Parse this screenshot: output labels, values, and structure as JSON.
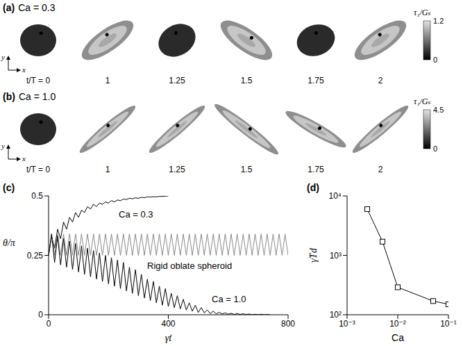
{
  "image_panels": [
    {
      "label": "(a)",
      "title": "Ca = 0.3",
      "axes": [
        "x",
        "y"
      ],
      "frame_labels": [
        "t/T = 0",
        "1",
        "1.25",
        "1.5",
        "1.75",
        "2"
      ],
      "colorbar": {
        "label": "τ₁/Gₛ",
        "range": [
          0,
          1.2
        ],
        "ticks": [
          0,
          1.2
        ]
      }
    },
    {
      "label": "(b)",
      "title": "Ca = 1.0",
      "axes": [
        "x",
        "y"
      ],
      "frame_labels": [
        "t/T = 0",
        "1",
        "1.25",
        "1.5",
        "1.75",
        "2"
      ],
      "colorbar": {
        "label": "τ₁/Gₛ",
        "range": [
          0,
          4.5
        ],
        "ticks": [
          0,
          4.5
        ]
      }
    }
  ],
  "chart_data": [
    {
      "type": "line",
      "label": "(c)",
      "x_label": "γ̇t",
      "y_label": "θ/π",
      "x": [
        0,
        10,
        20,
        30,
        40,
        50,
        60,
        70,
        80,
        90,
        100,
        110,
        120,
        130,
        140,
        150,
        160,
        170,
        180,
        190,
        200,
        210,
        220,
        230,
        240,
        250,
        260,
        270,
        280,
        290,
        300,
        310,
        320,
        330,
        340,
        350,
        360,
        370,
        380,
        390,
        400,
        410,
        420,
        430,
        440,
        450,
        460,
        470,
        480,
        490,
        500,
        510,
        520,
        530,
        540,
        550,
        560,
        570,
        580,
        590,
        600,
        610,
        620,
        630,
        640,
        650,
        660,
        670,
        680,
        690,
        700,
        710,
        720,
        730,
        740,
        750,
        760,
        770,
        780,
        790,
        800
      ],
      "series": [
        {
          "name": "Ca = 0.3",
          "color": "#000000",
          "values": [
            0.25,
            0.33,
            0.28,
            0.36,
            0.32,
            0.39,
            0.36,
            0.41,
            0.39,
            0.43,
            0.41,
            0.44,
            0.43,
            0.455,
            0.445,
            0.465,
            0.455,
            0.47,
            0.465,
            0.475,
            0.47,
            0.48,
            0.475,
            0.483,
            0.48,
            0.487,
            0.485,
            0.49,
            0.488,
            0.492,
            0.49,
            0.494,
            0.493,
            0.496,
            0.495,
            0.497,
            0.496,
            0.498,
            0.498,
            0.499,
            0.5,
            null,
            null,
            null,
            null,
            null,
            null,
            null,
            null,
            null,
            null,
            null,
            null,
            null,
            null,
            null,
            null,
            null,
            null,
            null,
            null,
            null,
            null,
            null,
            null,
            null,
            null,
            null,
            null,
            null,
            null,
            null,
            null,
            null,
            null,
            null,
            null,
            null,
            null,
            null,
            null
          ]
        },
        {
          "name": "Rigid oblate spheroid",
          "color": "#8a8a8a",
          "values": [
            0.25,
            0.34,
            0.25,
            0.34,
            0.25,
            0.34,
            0.25,
            0.34,
            0.25,
            0.34,
            0.25,
            0.34,
            0.25,
            0.34,
            0.25,
            0.34,
            0.25,
            0.34,
            0.25,
            0.34,
            0.25,
            0.34,
            0.25,
            0.34,
            0.25,
            0.34,
            0.25,
            0.34,
            0.25,
            0.34,
            0.25,
            0.34,
            0.25,
            0.34,
            0.25,
            0.34,
            0.25,
            0.34,
            0.25,
            0.34,
            0.25,
            0.34,
            0.25,
            0.34,
            0.25,
            0.34,
            0.25,
            0.34,
            0.25,
            0.34,
            0.25,
            0.34,
            0.25,
            0.34,
            0.25,
            0.34,
            0.25,
            0.34,
            0.25,
            0.34,
            0.25,
            0.34,
            0.25,
            0.34,
            0.25,
            0.34,
            0.25,
            0.34,
            0.25,
            0.34,
            0.25,
            0.34,
            0.25,
            0.34,
            0.25,
            0.34,
            0.25,
            0.34,
            0.25,
            0.34,
            0.25
          ]
        },
        {
          "name": "Ca = 1.0",
          "color": "#000000",
          "values": [
            0.25,
            0.34,
            0.22,
            0.33,
            0.21,
            0.32,
            0.2,
            0.31,
            0.19,
            0.3,
            0.18,
            0.29,
            0.17,
            0.28,
            0.16,
            0.27,
            0.15,
            0.26,
            0.14,
            0.25,
            0.13,
            0.24,
            0.12,
            0.23,
            0.11,
            0.22,
            0.1,
            0.2,
            0.09,
            0.19,
            0.08,
            0.17,
            0.07,
            0.15,
            0.06,
            0.14,
            0.05,
            0.12,
            0.04,
            0.11,
            0.035,
            0.09,
            0.03,
            0.08,
            0.025,
            0.065,
            0.02,
            0.05,
            0.015,
            0.04,
            0.01,
            0.03,
            0.008,
            0.02,
            0.005,
            0.015,
            0.004,
            0.01,
            0.003,
            0.008,
            0.002,
            0.006,
            0.001,
            0.005,
            0.001,
            0.004,
            0.001,
            0.003,
            0,
            0.002,
            0,
            0.002,
            0,
            0.001,
            0,
            null,
            null,
            null,
            null,
            null,
            null
          ]
        }
      ],
      "xlim": [
        0,
        800
      ],
      "xticks": [
        0,
        400,
        800
      ],
      "ylim": [
        0,
        0.5
      ],
      "yticks": [
        0,
        0.25,
        0.5
      ]
    },
    {
      "type": "line",
      "label": "(d)",
      "x_label": "Ca",
      "y_label": "γ̇Td",
      "log": true,
      "marker": "square",
      "color": "#000000",
      "x": [
        0.0025,
        0.005,
        0.01,
        0.05,
        0.1
      ],
      "values": [
        6000,
        1700,
        290,
        170,
        150
      ],
      "xlim": [
        0.001,
        0.1
      ],
      "xticks": [
        {
          "value": 0.001,
          "label": "10⁻³"
        },
        {
          "value": 0.01,
          "label": "10⁻²"
        },
        {
          "value": 0.1,
          "label": "10⁻¹"
        }
      ],
      "ylim": [
        100,
        10000
      ],
      "yticks": [
        {
          "value": 100,
          "label": "10²"
        },
        {
          "value": 1000,
          "label": "10³"
        },
        {
          "value": 10000,
          "label": "10⁴"
        }
      ]
    }
  ]
}
